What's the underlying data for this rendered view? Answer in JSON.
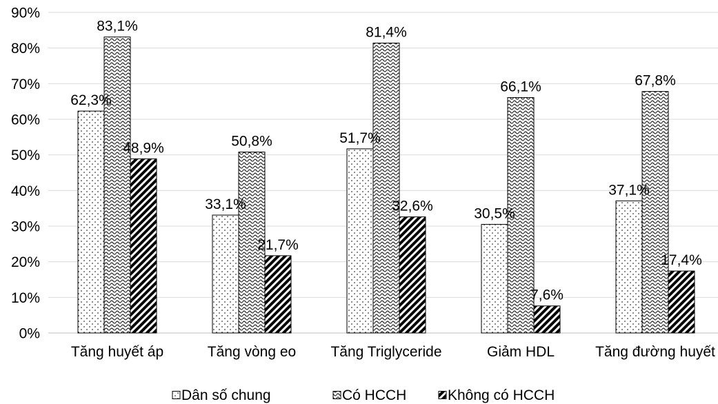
{
  "chart_data": {
    "type": "bar",
    "categories": [
      "Tăng huyết áp",
      "Tăng vòng eo",
      "Tăng Triglyceride",
      "Giảm HDL",
      "Tăng đường huyết"
    ],
    "series": [
      {
        "name": "Dân số chung",
        "values": [
          62.3,
          33.1,
          51.7,
          30.5,
          37.1
        ],
        "labels": [
          "62,3%",
          "33,1%",
          "51,7%",
          "30,5%",
          "37,1%"
        ]
      },
      {
        "name": "Có HCCH",
        "values": [
          83.1,
          50.8,
          81.4,
          66.1,
          67.8
        ],
        "labels": [
          "83,1%",
          "50,8%",
          "81,4%",
          "66,1%",
          "67,8%"
        ]
      },
      {
        "name": "Không có HCCH",
        "values": [
          48.9,
          21.7,
          32.6,
          7.6,
          17.4
        ],
        "labels": [
          "48,9%",
          "21,7%",
          "32,6%",
          "7,6%",
          "17,4%"
        ]
      }
    ],
    "y_ticks": [
      {
        "value": 0,
        "label": "0%"
      },
      {
        "value": 10,
        "label": "10%"
      },
      {
        "value": 20,
        "label": "20%"
      },
      {
        "value": 30,
        "label": "30%"
      },
      {
        "value": 40,
        "label": "40%"
      },
      {
        "value": 50,
        "label": "50%"
      },
      {
        "value": 60,
        "label": "60%"
      },
      {
        "value": 70,
        "label": "70%"
      },
      {
        "value": 80,
        "label": "80%"
      },
      {
        "value": 90,
        "label": "90%"
      }
    ],
    "ylim": [
      0,
      90
    ],
    "grid": true,
    "legend": "bottom"
  }
}
